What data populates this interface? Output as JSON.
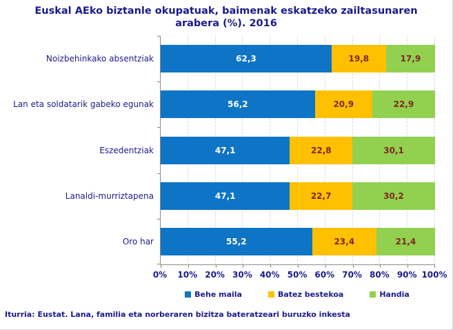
{
  "title": {
    "line1": "Euskal AEko biztanle okupatuak, baimenak eskatzeko zailtasunaren",
    "line2": "arabera (%). 2016"
  },
  "footer": "Iturria: Eustat. Lana, familia eta norberaren bizitza bateratzeari buruzko inkesta",
  "colors": {
    "title_text": "#1a1a8c",
    "label_text": "#1a1a8c",
    "value_on_blue": "#ffffff",
    "value_on_yellow_green": "#7e2722",
    "axis": "#898989",
    "gridline": "#d9d9d9"
  },
  "chart_data": {
    "type": "bar",
    "orientation": "horizontal",
    "stacked": true,
    "title": "Euskal AEko biztanle okupatuak, baimenak eskatzeko zailtasunaren arabera (%). 2016",
    "categories": [
      "Noizbehinkako absentziak",
      "Lan eta soldatarik gabeko egunak",
      "Eszedentziak",
      "Lanaldi-murriztapena",
      "Oro har"
    ],
    "series": [
      {
        "name": "Behe maila",
        "color": "#0e74c6",
        "values": [
          62.3,
          56.2,
          47.1,
          47.1,
          55.2
        ]
      },
      {
        "name": "Batez bestekoa",
        "color": "#ffc000",
        "values": [
          19.8,
          20.9,
          22.8,
          22.7,
          23.4
        ]
      },
      {
        "name": "Handia",
        "color": "#92d050",
        "values": [
          17.9,
          22.9,
          30.1,
          30.2,
          21.4
        ]
      }
    ],
    "x_ticks": [
      "0%",
      "10%",
      "20%",
      "30%",
      "40%",
      "50%",
      "60%",
      "70%",
      "80%",
      "90%",
      "100%"
    ],
    "xlim": [
      0,
      100
    ],
    "grid": "vertical-dashed",
    "legend_position": "bottom",
    "value_labels": true,
    "decimal_separator": ","
  }
}
